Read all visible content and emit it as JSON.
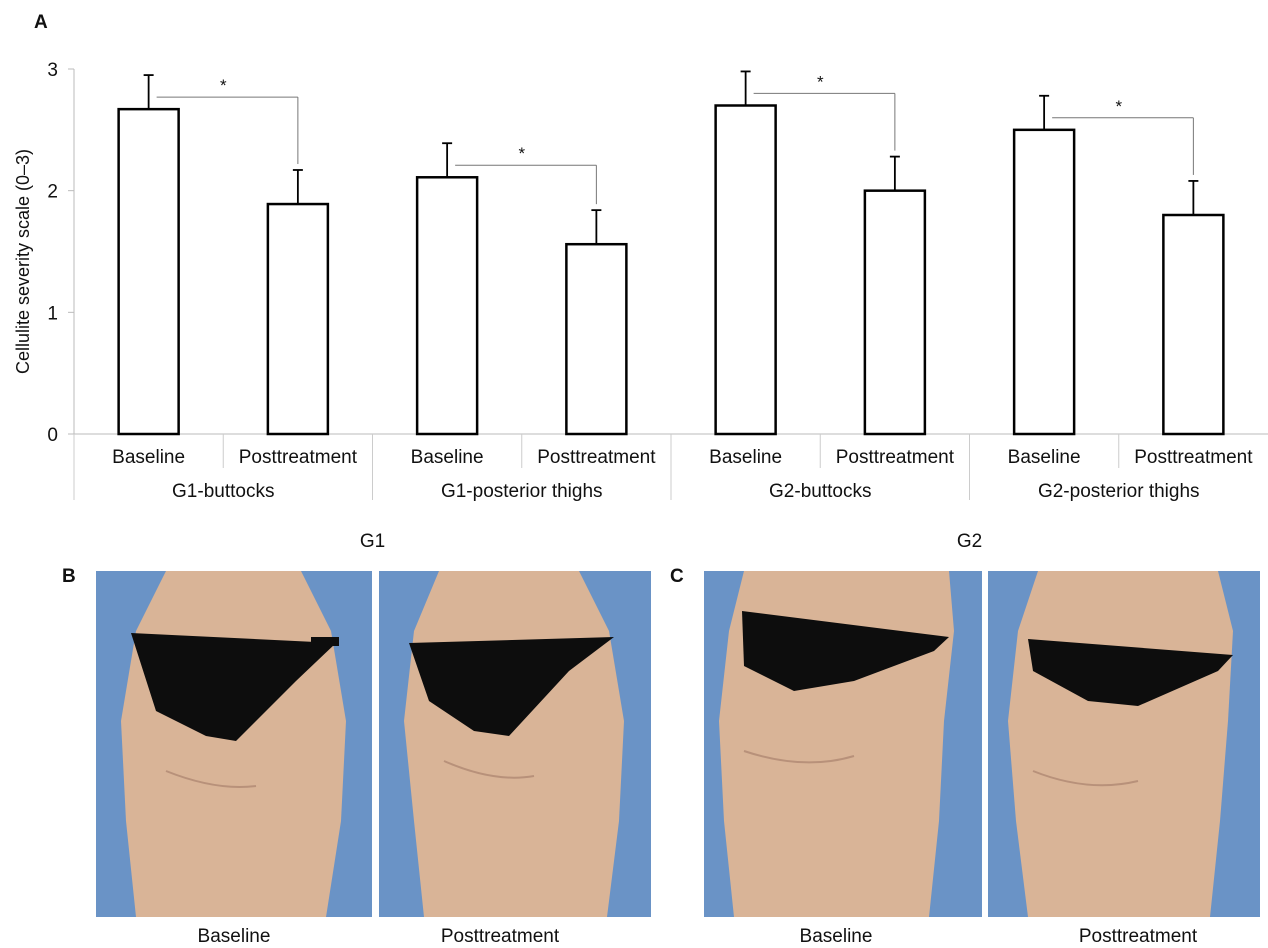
{
  "panels": {
    "a_label": "A",
    "b_label": "B",
    "c_label": "C"
  },
  "chart_data": {
    "type": "bar",
    "ylabel": "Cellulite severity scale (0–3)",
    "ylim": [
      0,
      3
    ],
    "yticks": [
      0,
      1,
      2,
      3
    ],
    "groups": [
      {
        "name": "G1-buttocks",
        "bars": [
          {
            "label": "Baseline",
            "value": 2.67,
            "error": 0.28
          },
          {
            "label": "Posttreatment",
            "value": 1.89,
            "error": 0.28
          }
        ]
      },
      {
        "name": "G1-posterior thighs",
        "bars": [
          {
            "label": "Baseline",
            "value": 2.11,
            "error": 0.28
          },
          {
            "label": "Posttreatment",
            "value": 1.56,
            "error": 0.28
          }
        ]
      },
      {
        "name": "G2-buttocks",
        "bars": [
          {
            "label": "Baseline",
            "value": 2.7,
            "error": 0.28
          },
          {
            "label": "Posttreatment",
            "value": 2.0,
            "error": 0.28
          }
        ]
      },
      {
        "name": "G2-posterior thighs",
        "bars": [
          {
            "label": "Baseline",
            "value": 2.5,
            "error": 0.28
          },
          {
            "label": "Posttreatment",
            "value": 1.8,
            "error": 0.28
          }
        ]
      }
    ],
    "significance_marker": "*",
    "group_sets": [
      "G1",
      "G2"
    ],
    "grid": false,
    "bar_fill": "#ffffff",
    "bar_stroke": "#000000"
  },
  "photos": {
    "b": {
      "captions": [
        "Baseline",
        "Posttreatment"
      ]
    },
    "c": {
      "captions": [
        "Baseline",
        "Posttreatment"
      ]
    },
    "colors": {
      "background": "#6a93c6",
      "skin": "#d9b497",
      "garment": "#0d0d0d"
    }
  }
}
